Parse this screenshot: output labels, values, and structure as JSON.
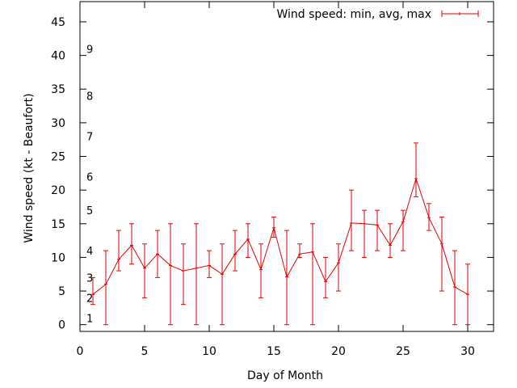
{
  "chart_data": {
    "type": "line",
    "xlabel": "Day of Month",
    "ylabel": "Wind speed (kt - Beaufort)",
    "xlim": [
      0,
      32
    ],
    "ylim": [
      -1,
      48
    ],
    "x_ticks": [
      "0",
      "5",
      "10",
      "15",
      "20",
      "25",
      "30"
    ],
    "y_ticks": [
      "0",
      "5",
      "10",
      "15",
      "20",
      "25",
      "30",
      "35",
      "40",
      "45"
    ],
    "legend_position": "top-right",
    "series": [
      {
        "name": "Wind speed: min, avg, max",
        "color": "#e00000",
        "x": [
          1,
          2,
          3,
          4,
          5,
          6,
          7,
          8,
          9,
          10,
          11,
          12,
          13,
          14,
          15,
          16,
          17,
          18,
          19,
          20,
          21,
          22,
          23,
          24,
          25,
          26,
          27,
          28,
          29,
          30
        ],
        "avg": [
          4.5,
          6,
          9.7,
          11.8,
          8.4,
          10.5,
          8.8,
          8,
          8.4,
          8.8,
          7.5,
          10.5,
          12.7,
          8.2,
          14.4,
          7.1,
          10.5,
          10.8,
          6.4,
          9.2,
          15.1,
          15,
          14.8,
          11.8,
          15.3,
          21.7,
          15.9,
          12,
          5.6,
          4.5
        ],
        "min": [
          3,
          0,
          8,
          9,
          4,
          7,
          0,
          3,
          0,
          7,
          0,
          8,
          10,
          4,
          13,
          0,
          10,
          0,
          4,
          5,
          11,
          10,
          11,
          10,
          11,
          19,
          14,
          5,
          0,
          0
        ],
        "max": [
          7,
          11,
          14,
          15,
          12,
          14,
          15,
          12,
          15,
          11,
          12,
          14,
          15,
          12,
          16,
          14,
          12,
          15,
          10,
          12,
          20,
          17,
          17,
          15,
          17,
          27,
          18,
          16,
          11,
          9
        ]
      }
    ],
    "beaufort_labels": [
      {
        "label": "1",
        "value": 1
      },
      {
        "label": "2",
        "value": 4
      },
      {
        "label": "3",
        "value": 7
      },
      {
        "label": "4",
        "value": 11
      },
      {
        "label": "5",
        "value": 17
      },
      {
        "label": "6",
        "value": 22
      },
      {
        "label": "7",
        "value": 28
      },
      {
        "label": "8",
        "value": 34
      },
      {
        "label": "9",
        "value": 41
      }
    ]
  }
}
